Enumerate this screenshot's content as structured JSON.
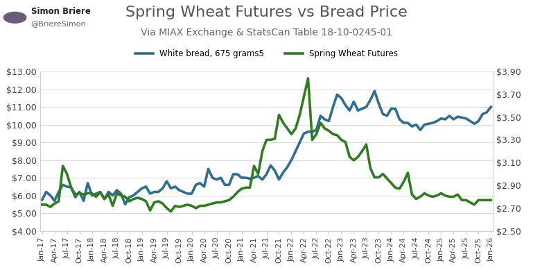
{
  "author": {
    "name": "Simon Briere",
    "handle": "@BriereSimon"
  },
  "chart_data": {
    "type": "line",
    "title": "Spring Wheat Futures vs Bread Price",
    "subtitle": "Via MIAX Exchange & StatsCan Table 18-10-0245-01",
    "categories": [
      "Jan-17",
      null,
      null,
      "Apr-17",
      null,
      null,
      "Jul-17",
      null,
      null,
      "Oct-17",
      null,
      null,
      "Jan-18",
      null,
      null,
      "Apr-18",
      null,
      null,
      "Jul-18",
      null,
      null,
      "Oct-18",
      null,
      null,
      "Jan-19",
      null,
      null,
      "Apr-19",
      null,
      null,
      "Jul-19",
      null,
      null,
      "Oct-19",
      null,
      null,
      "Jan-20",
      null,
      null,
      "Apr-20",
      null,
      null,
      "Jul-20",
      null,
      null,
      "Oct-20",
      null,
      null,
      "Jan-21",
      null,
      null,
      "Apr-21",
      null,
      null,
      "Jul-21",
      null,
      null,
      "Oct-21",
      null,
      null,
      "Jan-22",
      null,
      null,
      "Apr-22",
      null,
      null,
      "Jul-22",
      null,
      null,
      "Oct-22",
      null,
      null,
      "Jan-23",
      null,
      null,
      "Apr-23",
      null,
      null,
      "Jul-23",
      null,
      null,
      "Oct-23",
      null,
      null,
      "Jan-24",
      null,
      null,
      "Apr-24",
      null,
      null,
      "Jul-24",
      null,
      null,
      "Oct-24",
      null,
      null,
      "Jan-25",
      null,
      null,
      "Apr-25",
      null,
      null,
      "Jul-25",
      null,
      null,
      "Oct-25",
      null,
      null,
      "Jan-26"
    ],
    "series": [
      {
        "name": "White bread, 675 grams5",
        "color": "#2e6e8e",
        "values": [
          5.75,
          6.2,
          6.0,
          5.7,
          6.2,
          6.6,
          6.5,
          6.45,
          5.9,
          6.2,
          5.7,
          6.7,
          6.0,
          6.1,
          6.2,
          5.8,
          6.2,
          6.0,
          6.3,
          6.1,
          5.5,
          5.9,
          6.0,
          6.2,
          6.4,
          6.5,
          6.1,
          6.2,
          6.2,
          6.4,
          6.8,
          6.4,
          6.5,
          6.3,
          6.2,
          6.1,
          6.1,
          6.6,
          6.7,
          6.5,
          7.5,
          7.0,
          6.9,
          7.0,
          6.6,
          6.6,
          7.2,
          7.2,
          7.0,
          7.0,
          6.95,
          7.0,
          7.1,
          6.9,
          7.2,
          7.7,
          7.4,
          6.9,
          7.3,
          7.6,
          8.0,
          8.5,
          9.0,
          9.5,
          9.6,
          9.6,
          9.7,
          10.5,
          10.3,
          10.2,
          11.0,
          11.7,
          11.5,
          11.1,
          10.8,
          11.3,
          10.8,
          10.9,
          11.0,
          11.4,
          11.9,
          11.2,
          10.6,
          10.5,
          10.9,
          10.9,
          10.3,
          10.1,
          10.1,
          9.9,
          10.0,
          9.7,
          10.0,
          10.05,
          10.1,
          10.2,
          10.35,
          10.3,
          10.5,
          10.3,
          10.45,
          10.4,
          10.35,
          10.2,
          10.05,
          10.2,
          10.6,
          10.7,
          11.0
        ]
      },
      {
        "name": "Spring Wheat Futures",
        "color": "#2e7d1e",
        "axis": "y2",
        "values": [
          2.73,
          2.73,
          2.71,
          2.74,
          2.76,
          3.07,
          3.0,
          2.88,
          2.82,
          2.83,
          2.82,
          2.83,
          2.83,
          2.8,
          2.84,
          2.78,
          2.82,
          2.72,
          2.83,
          2.81,
          2.8,
          2.76,
          2.78,
          2.79,
          2.78,
          2.76,
          2.68,
          2.75,
          2.76,
          2.74,
          2.7,
          2.67,
          2.72,
          2.71,
          2.72,
          2.73,
          2.72,
          2.7,
          2.72,
          2.72,
          2.73,
          2.74,
          2.75,
          2.75,
          2.76,
          2.77,
          2.8,
          2.84,
          2.87,
          2.88,
          2.88,
          3.07,
          3.0,
          3.2,
          3.3,
          3.3,
          3.31,
          3.52,
          3.45,
          3.4,
          3.35,
          3.4,
          3.52,
          3.68,
          3.84,
          3.3,
          3.35,
          3.45,
          3.4,
          3.38,
          3.35,
          3.34,
          3.3,
          3.28,
          3.15,
          3.12,
          3.15,
          3.2,
          3.26,
          3.05,
          2.97,
          2.97,
          3.0,
          2.96,
          2.92,
          2.88,
          2.87,
          2.93,
          3.01,
          2.82,
          2.78,
          2.8,
          2.83,
          2.81,
          2.8,
          2.81,
          2.83,
          2.81,
          2.8,
          2.8,
          2.82,
          2.77,
          2.77,
          2.75,
          2.73,
          2.77,
          2.77,
          2.77,
          2.77
        ]
      }
    ],
    "ylim": [
      4,
      13
    ],
    "yticks": [
      {
        "value": 4,
        "label": "$4.00"
      },
      {
        "value": 5,
        "label": "$5.00"
      },
      {
        "value": 6,
        "label": "$6.00"
      },
      {
        "value": 7,
        "label": "$7.00"
      },
      {
        "value": 8,
        "label": "$8.00"
      },
      {
        "value": 9,
        "label": "$9.00"
      },
      {
        "value": 10,
        "label": "$10.00"
      },
      {
        "value": 11,
        "label": "$11.00"
      },
      {
        "value": 12,
        "label": "$12.00"
      },
      {
        "value": 13,
        "label": "$13.00"
      }
    ],
    "y2lim": [
      2.5,
      3.9
    ],
    "y2ticks": [
      {
        "value": 2.5,
        "label": "$2.50"
      },
      {
        "value": 2.7,
        "label": "$2.70"
      },
      {
        "value": 2.9,
        "label": "$2.90"
      },
      {
        "value": 3.1,
        "label": "$3.10"
      },
      {
        "value": 3.3,
        "label": "$3.30"
      },
      {
        "value": 3.5,
        "label": "$3.50"
      },
      {
        "value": 3.7,
        "label": "$3.70"
      },
      {
        "value": 3.9,
        "label": "$3.90"
      }
    ],
    "grid": true,
    "legend": "upper center"
  }
}
